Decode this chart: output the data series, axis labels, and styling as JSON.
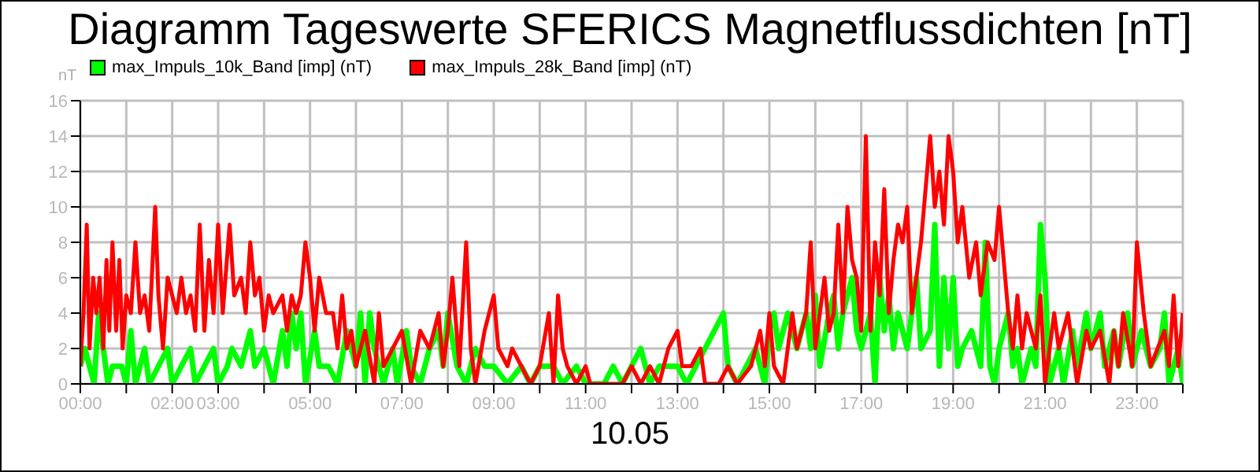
{
  "chart_data": {
    "type": "line",
    "title": "Diagramm Tageswerte SFERICS Magnetflussdichten [nT]",
    "xlabel": "10.05",
    "ylabel": "nT",
    "legend": "top left",
    "grid": true,
    "marker": "none",
    "line_style": "solid",
    "xlim": [
      0,
      24
    ],
    "ylim": [
      0,
      16
    ],
    "yticks": [
      0,
      2,
      4,
      6,
      8,
      10,
      12,
      14,
      16
    ],
    "xticks": [
      {
        "value": 0,
        "label": "00:00"
      },
      {
        "value": 1,
        "label": null
      },
      {
        "value": 2,
        "label": "02:00"
      },
      {
        "value": 3,
        "label": "03:00"
      },
      {
        "value": 4,
        "label": null
      },
      {
        "value": 5,
        "label": "05:00"
      },
      {
        "value": 6,
        "label": null
      },
      {
        "value": 7,
        "label": "07:00"
      },
      {
        "value": 8,
        "label": null
      },
      {
        "value": 9,
        "label": "09:00"
      },
      {
        "value": 10,
        "label": null
      },
      {
        "value": 11,
        "label": "11:00"
      },
      {
        "value": 12,
        "label": null
      },
      {
        "value": 13,
        "label": "13:00"
      },
      {
        "value": 14,
        "label": null
      },
      {
        "value": 15,
        "label": "15:00"
      },
      {
        "value": 16,
        "label": null
      },
      {
        "value": 17,
        "label": "17:00"
      },
      {
        "value": 18,
        "label": null
      },
      {
        "value": 19,
        "label": "19:00"
      },
      {
        "value": 20,
        "label": null
      },
      {
        "value": 21,
        "label": "21:00"
      },
      {
        "value": 22,
        "label": null
      },
      {
        "value": 23,
        "label": "23:00"
      },
      {
        "value": 24,
        "label": null
      }
    ],
    "series": [
      {
        "name": "max_Impuls_10k_Band [imp] (nT)",
        "color": "#00ff00",
        "x": [
          0,
          0.1,
          0.3,
          0.4,
          0.5,
          0.6,
          0.7,
          0.9,
          1.0,
          1.1,
          1.2,
          1.4,
          1.5,
          1.7,
          1.9,
          2.0,
          2.2,
          2.4,
          2.5,
          2.7,
          2.9,
          3.0,
          3.2,
          3.3,
          3.5,
          3.7,
          3.8,
          4.0,
          4.2,
          4.4,
          4.5,
          4.6,
          4.7,
          4.8,
          4.9,
          5.1,
          5.2,
          5.4,
          5.6,
          5.8,
          6.0,
          6.1,
          6.2,
          6.3,
          6.4,
          6.6,
          6.8,
          6.9,
          7.1,
          7.2,
          7.4,
          7.6,
          7.8,
          7.9,
          8.0,
          8.2,
          8.4,
          8.6,
          8.8,
          9.0,
          9.3,
          9.6,
          9.8,
          10.0,
          10.3,
          10.5,
          10.8,
          11.0,
          11.4,
          11.6,
          11.8,
          12.0,
          12.2,
          12.4,
          12.6,
          12.8,
          13.0,
          13.2,
          13.4,
          13.6,
          13.8,
          14.0,
          14.1,
          14.3,
          14.5,
          14.7,
          14.9,
          15.0,
          15.1,
          15.2,
          15.4,
          15.5,
          15.6,
          15.8,
          15.9,
          16.0,
          16.1,
          16.3,
          16.4,
          16.5,
          16.6,
          16.8,
          16.9,
          17.0,
          17.2,
          17.3,
          17.4,
          17.5,
          17.6,
          17.7,
          17.8,
          17.9,
          18.0,
          18.1,
          18.2,
          18.3,
          18.5,
          18.6,
          18.7,
          18.8,
          18.9,
          19.0,
          19.1,
          19.2,
          19.4,
          19.5,
          19.6,
          19.7,
          19.8,
          19.9,
          20.0,
          20.2,
          20.3,
          20.4,
          20.5,
          20.7,
          20.8,
          20.9,
          21.0,
          21.1,
          21.3,
          21.4,
          21.6,
          21.7,
          21.9,
          22.0,
          22.2,
          22.3,
          22.5,
          22.6,
          22.8,
          22.9,
          23.1,
          23.3,
          23.5,
          23.6,
          23.7,
          23.9,
          24.0
        ],
        "values": [
          1,
          2,
          0,
          4,
          2,
          0,
          1,
          1,
          0,
          3,
          0,
          2,
          0,
          1,
          2,
          0,
          1,
          2,
          0,
          1,
          2,
          0,
          1,
          2,
          1,
          3,
          1,
          2,
          0,
          3,
          1,
          4,
          2,
          4,
          0,
          3,
          1,
          1,
          0,
          3,
          1,
          4,
          0,
          4,
          2,
          0,
          2,
          0,
          3,
          1,
          0,
          2,
          3,
          1,
          4,
          1,
          0,
          2,
          1,
          1,
          0,
          1,
          0,
          1,
          1,
          0,
          1,
          0,
          0,
          1,
          0,
          1,
          2,
          0,
          1,
          1,
          1,
          0,
          1,
          2,
          3,
          4,
          1,
          0,
          1,
          2,
          0,
          3,
          4,
          2,
          4,
          3,
          2,
          4,
          2,
          5,
          1,
          4,
          5,
          2,
          4,
          6,
          3,
          2,
          4,
          0,
          6,
          3,
          5,
          2,
          4,
          3,
          2,
          4,
          6,
          2,
          3,
          9,
          1,
          6,
          2,
          6,
          1,
          2,
          3,
          2,
          1,
          8,
          1,
          0,
          2,
          4,
          1,
          2,
          0,
          2,
          1,
          9,
          6,
          0,
          2,
          0,
          3,
          1,
          4,
          2,
          4,
          1,
          3,
          1,
          4,
          1,
          3,
          1,
          2,
          4,
          0,
          2,
          0
        ]
      },
      {
        "name": "max_Impuls_28k_Band [imp] (nT)",
        "color": "#ff0000",
        "x": [
          0,
          0.07,
          0.14,
          0.2,
          0.28,
          0.35,
          0.42,
          0.5,
          0.57,
          0.63,
          0.7,
          0.78,
          0.85,
          0.92,
          1.0,
          1.1,
          1.2,
          1.3,
          1.4,
          1.5,
          1.63,
          1.7,
          1.8,
          1.9,
          2.0,
          2.1,
          2.2,
          2.3,
          2.4,
          2.5,
          2.6,
          2.7,
          2.8,
          2.9,
          3.0,
          3.1,
          3.25,
          3.35,
          3.5,
          3.6,
          3.7,
          3.8,
          3.9,
          4.0,
          4.1,
          4.2,
          4.4,
          4.5,
          4.6,
          4.7,
          4.8,
          4.9,
          5.0,
          5.1,
          5.2,
          5.35,
          5.5,
          5.6,
          5.7,
          5.8,
          5.9,
          6.0,
          6.2,
          6.4,
          6.5,
          6.6,
          6.8,
          7.0,
          7.2,
          7.4,
          7.6,
          7.8,
          7.9,
          8.0,
          8.1,
          8.25,
          8.4,
          8.5,
          8.6,
          8.8,
          9.0,
          9.1,
          9.3,
          9.4,
          9.6,
          9.8,
          10.0,
          10.2,
          10.3,
          10.4,
          10.5,
          10.6,
          10.8,
          11.0,
          11.1,
          11.8,
          12.0,
          12.2,
          12.4,
          12.6,
          12.8,
          13.0,
          13.1,
          13.3,
          13.5,
          13.6,
          13.9,
          14.1,
          14.3,
          14.6,
          14.8,
          14.9,
          15.0,
          15.1,
          15.3,
          15.5,
          15.6,
          15.8,
          15.9,
          16.0,
          16.1,
          16.2,
          16.3,
          16.4,
          16.5,
          16.6,
          16.7,
          16.8,
          16.9,
          17.0,
          17.1,
          17.2,
          17.3,
          17.4,
          17.5,
          17.6,
          17.7,
          17.8,
          17.9,
          18.0,
          18.1,
          18.3,
          18.5,
          18.6,
          18.7,
          18.8,
          18.9,
          19.0,
          19.1,
          19.2,
          19.35,
          19.5,
          19.6,
          19.75,
          19.9,
          20.0,
          20.1,
          20.2,
          20.3,
          20.4,
          20.5,
          20.6,
          20.7,
          20.8,
          20.9,
          21.0,
          21.2,
          21.3,
          21.5,
          21.7,
          21.9,
          22.0,
          22.2,
          22.4,
          22.5,
          22.6,
          22.7,
          22.9,
          23.0,
          23.15,
          23.3,
          23.6,
          23.7,
          23.8,
          23.9,
          24.0
        ],
        "values": [
          1,
          4,
          9,
          2,
          6,
          4,
          6,
          2,
          7,
          3,
          8,
          3,
          7,
          2,
          5,
          4,
          8,
          4,
          5,
          3,
          10,
          5,
          2,
          6,
          5,
          4,
          6,
          4,
          5,
          3,
          9,
          3,
          7,
          4,
          9,
          4,
          9,
          5,
          6,
          4,
          8,
          5,
          6,
          3,
          5,
          4,
          5,
          3,
          5,
          4,
          5,
          8,
          6,
          3,
          6,
          4,
          4,
          2,
          5,
          2,
          3,
          1,
          3,
          0,
          4,
          1,
          2,
          3,
          0,
          3,
          2,
          4,
          1,
          3,
          6,
          1,
          8,
          2,
          0,
          3,
          5,
          2,
          1,
          2,
          1,
          0,
          1,
          4,
          0,
          5,
          2,
          1,
          0,
          1,
          0,
          0,
          1,
          0,
          1,
          0,
          2,
          3,
          1,
          1,
          2,
          0,
          0,
          1,
          0,
          1,
          3,
          1,
          4,
          1,
          0,
          4,
          2,
          4,
          8,
          2,
          4,
          6,
          3,
          4,
          9,
          4,
          10,
          7,
          6,
          3,
          14,
          3,
          8,
          5,
          11,
          4,
          7,
          9,
          8,
          10,
          4,
          8,
          14,
          10,
          12,
          9,
          14,
          12,
          8,
          10,
          6,
          8,
          5,
          8,
          7,
          10,
          7,
          4,
          2,
          5,
          2,
          4,
          3,
          2,
          5,
          0,
          4,
          2,
          4,
          0,
          3,
          2,
          3,
          0,
          3,
          1,
          4,
          1,
          8,
          4,
          1,
          3,
          1,
          5,
          1,
          4
        ]
      }
    ]
  }
}
